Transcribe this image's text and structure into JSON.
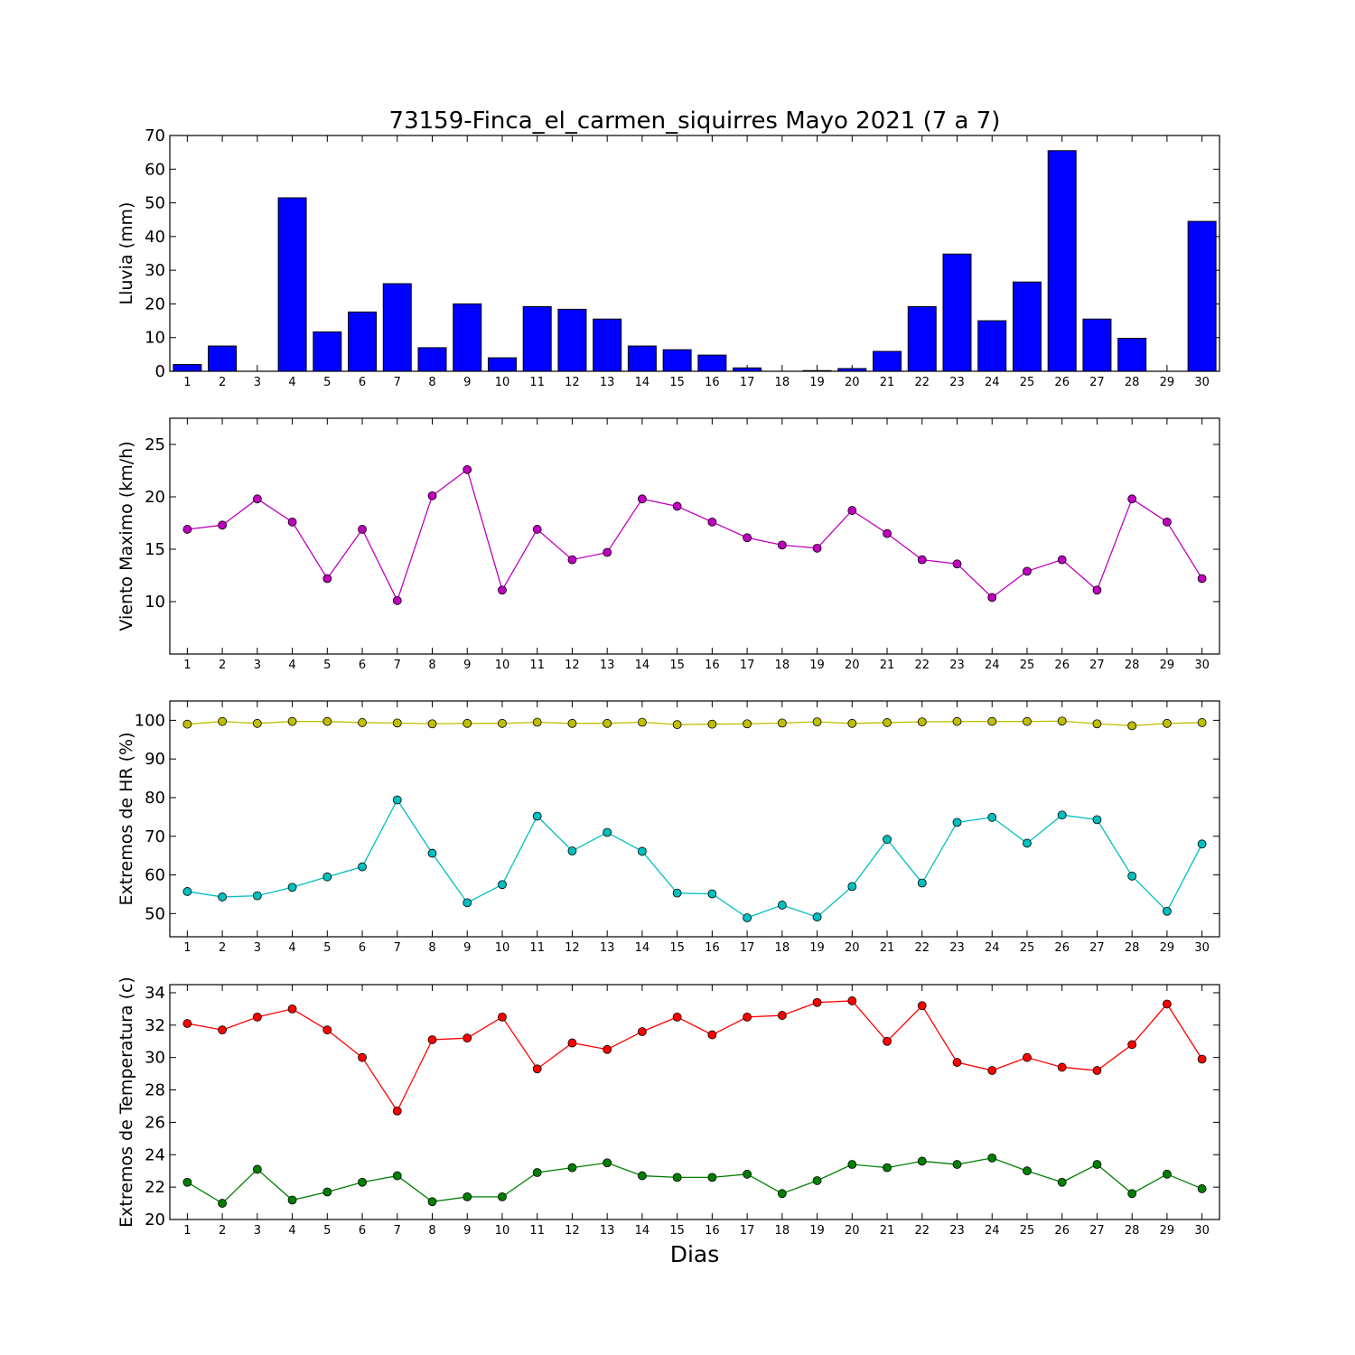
{
  "chart_data": {
    "type": "line",
    "title": "73159-Finca_el_carmen_siquirres Mayo 2021  (7 a 7)",
    "xlabel": "Dias",
    "x": [
      1,
      2,
      3,
      4,
      5,
      6,
      7,
      8,
      9,
      10,
      11,
      12,
      13,
      14,
      15,
      16,
      17,
      18,
      19,
      20,
      21,
      22,
      23,
      24,
      25,
      26,
      27,
      28,
      29,
      30
    ],
    "panels": [
      {
        "type": "bar",
        "ylabel": "Lluvia (mm)",
        "ylim": [
          0,
          70
        ],
        "yticks": [
          0,
          10,
          20,
          30,
          40,
          50,
          60,
          70
        ],
        "series": [
          {
            "color": "#0000ff",
            "values": [
              2.0,
              7.5,
              0.0,
              51.5,
              11.7,
              17.6,
              26.0,
              7.0,
              20.0,
              4.0,
              19.2,
              18.4,
              15.5,
              7.5,
              6.4,
              4.8,
              1.0,
              0.0,
              0.2,
              0.8,
              5.9,
              19.2,
              34.8,
              15.0,
              26.5,
              65.5,
              15.5,
              9.8,
              0.0,
              44.5
            ]
          }
        ]
      },
      {
        "type": "line",
        "ylabel": "Viento Maximo (km/h)",
        "ylim": [
          5,
          27.5
        ],
        "yticks": [
          10,
          15,
          20,
          25
        ],
        "series": [
          {
            "color": "#bf00bf",
            "values": [
              16.9,
              17.3,
              19.8,
              17.6,
              12.2,
              16.9,
              10.1,
              20.1,
              22.6,
              11.1,
              16.9,
              14.0,
              14.7,
              19.8,
              19.1,
              17.6,
              16.1,
              15.4,
              15.1,
              18.7,
              16.5,
              14.0,
              13.6,
              10.4,
              12.9,
              14.0,
              11.1,
              19.8,
              17.6,
              12.2
            ]
          }
        ]
      },
      {
        "type": "line",
        "ylabel": "Extremos de HR (%)",
        "ylim": [
          44,
          105
        ],
        "yticks": [
          50,
          60,
          70,
          80,
          90,
          100
        ],
        "series": [
          {
            "color": "#bfbf00",
            "values": [
              99.0,
              99.7,
              99.2,
              99.7,
              99.7,
              99.4,
              99.3,
              99.1,
              99.2,
              99.2,
              99.5,
              99.2,
              99.2,
              99.5,
              98.9,
              99.0,
              99.1,
              99.3,
              99.6,
              99.2,
              99.4,
              99.6,
              99.7,
              99.7,
              99.7,
              99.8,
              99.1,
              98.6,
              99.2,
              99.4
            ]
          },
          {
            "color": "#00bfbf",
            "values": [
              55.7,
              54.3,
              54.6,
              56.8,
              59.5,
              62.1,
              79.4,
              65.6,
              52.8,
              57.5,
              75.2,
              66.2,
              71.0,
              66.1,
              55.3,
              55.1,
              48.9,
              52.2,
              49.1,
              57.0,
              69.2,
              57.9,
              73.6,
              74.9,
              68.2,
              75.5,
              74.3,
              59.7,
              50.6,
              68.0
            ]
          }
        ]
      },
      {
        "type": "line",
        "ylabel": "Extremos de Temperatura (c)",
        "ylim": [
          20,
          34.5
        ],
        "yticks": [
          20,
          22,
          24,
          26,
          28,
          30,
          32,
          34
        ],
        "series": [
          {
            "color": "#ff0000",
            "values": [
              32.1,
              31.7,
              32.5,
              33.0,
              31.7,
              30.0,
              26.7,
              31.1,
              31.2,
              32.5,
              29.3,
              30.9,
              30.5,
              31.6,
              32.5,
              31.4,
              32.5,
              32.6,
              33.4,
              33.5,
              31.0,
              33.2,
              29.7,
              29.2,
              30.0,
              29.4,
              29.2,
              30.8,
              33.3,
              29.9
            ]
          },
          {
            "color": "#007f00",
            "values": [
              22.3,
              21.0,
              23.1,
              21.2,
              21.7,
              22.3,
              22.7,
              21.1,
              21.4,
              21.4,
              22.9,
              23.2,
              23.5,
              22.7,
              22.6,
              22.6,
              22.8,
              21.6,
              22.4,
              23.4,
              23.2,
              23.6,
              23.4,
              23.8,
              23.0,
              22.3,
              23.4,
              21.6,
              22.8,
              21.9
            ]
          }
        ]
      }
    ]
  }
}
